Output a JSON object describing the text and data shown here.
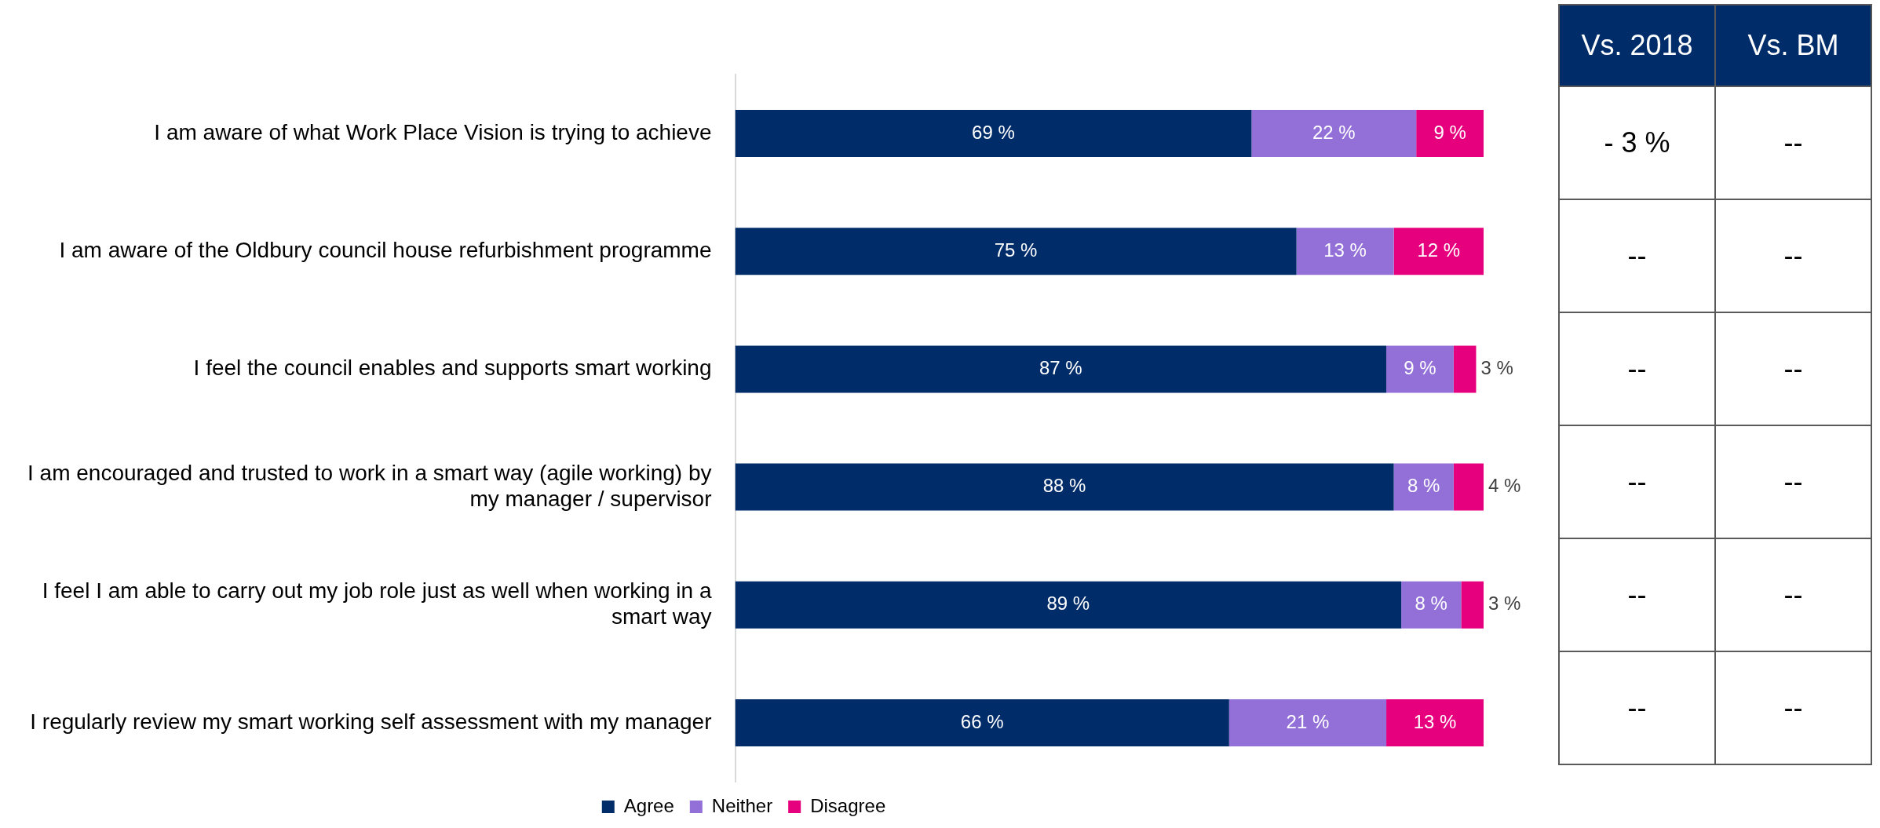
{
  "chart_data": [
    {
      "type": "bar",
      "orientation": "horizontal",
      "stacked": true,
      "categories": [
        "I am aware of what Work Place Vision is trying to achieve",
        "I am aware of the Oldbury council house refurbishment programme",
        "I feel the council enables and supports smart working",
        "I am encouraged and trusted to work in a smart way (agile working) by my manager / supervisor",
        "I feel I am able to carry out my job role just as well when working in a smart way",
        "I regularly review my smart working self assessment with my manager"
      ],
      "series": [
        {
          "name": "Agree",
          "color": "#002d6a",
          "values": [
            69,
            75,
            87,
            88,
            89,
            66
          ],
          "value_labels": [
            "69 %",
            "75 %",
            "87 %",
            "88 %",
            "89 %",
            "66 %"
          ]
        },
        {
          "name": "Neither",
          "color": "#9370d8",
          "values": [
            22,
            13,
            9,
            8,
            8,
            21
          ],
          "value_labels": [
            "22 %",
            "13 %",
            "9 %",
            "8 %",
            "8 %",
            "21 %"
          ]
        },
        {
          "name": "Disagree",
          "color": "#e6007e",
          "values": [
            9,
            12,
            3,
            4,
            3,
            13
          ],
          "value_labels": [
            "9 %",
            "12 %",
            "3 %",
            "4 %",
            "3 %",
            "13 %"
          ]
        }
      ],
      "xlim": [
        0,
        100
      ],
      "tick_labels": "y",
      "grid": false,
      "legend": "bottom"
    },
    {
      "type": "other",
      "categories": [
        "Vs. 2018",
        "Vs. BM"
      ],
      "annotations": [
        "- 3 %",
        "--",
        "--",
        "--",
        "--",
        "--",
        "--",
        "--",
        "--",
        "--",
        "--",
        "--"
      ]
    }
  ]
}
